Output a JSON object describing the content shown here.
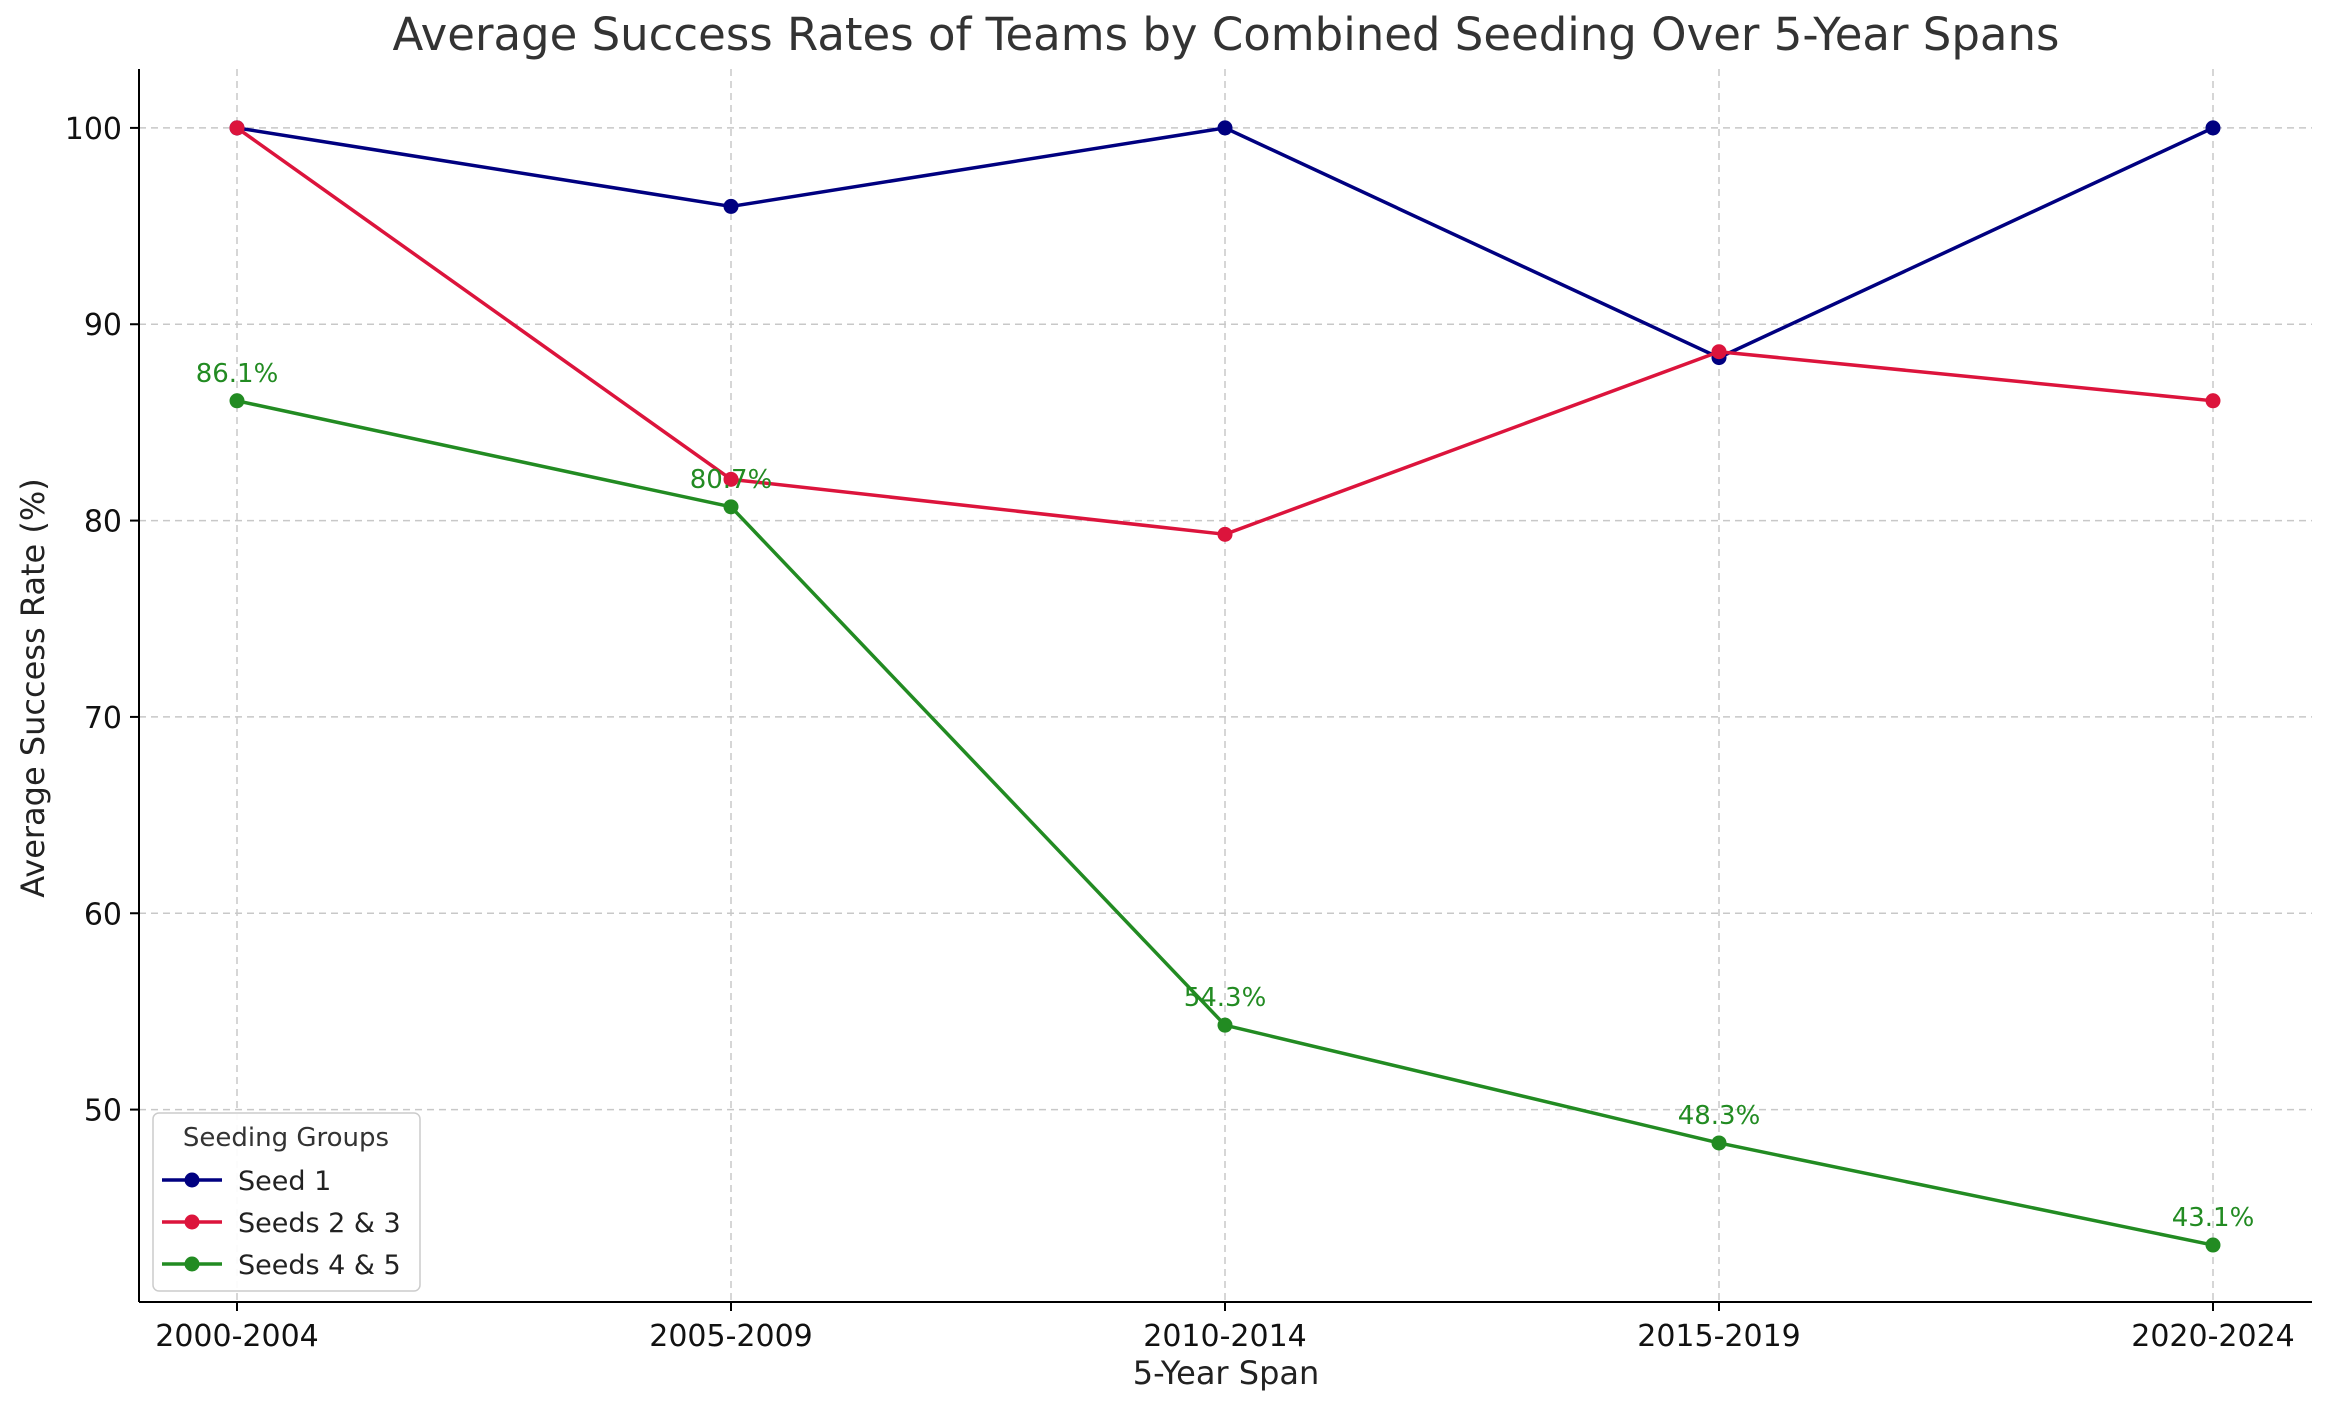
{
  "colors": {
    "seed1": "#000080",
    "seeds23": "#DC143C",
    "seeds45": "#228B22",
    "grid": "#c8c8c8"
  },
  "chart_data": {
    "type": "line",
    "title": "Average Success Rates of Teams by Combined Seeding Over 5-Year Spans",
    "xlabel": "5-Year Span",
    "ylabel": "Average Success Rate (%)",
    "categories": [
      "2000-2004",
      "2005-2009",
      "2010-2014",
      "2015-2019",
      "2020-2024"
    ],
    "ylim": [
      40.2,
      103.0
    ],
    "yticks": [
      50,
      60,
      70,
      80,
      90,
      100
    ],
    "grid": true,
    "legend": {
      "title": "Seeding Groups",
      "placement": "lower-left"
    },
    "series": [
      {
        "name": "Seed 1",
        "color": "#000080",
        "values": [
          100.0,
          96.0,
          100.0,
          88.3,
          100.0
        ]
      },
      {
        "name": "Seeds 2 & 3",
        "color": "#DC143C",
        "values": [
          100.0,
          82.1,
          79.3,
          88.6,
          86.1
        ]
      },
      {
        "name": "Seeds 4 & 5",
        "color": "#228B22",
        "values": [
          86.1,
          80.7,
          54.3,
          48.3,
          43.1
        ],
        "data_labels": [
          "86.1%",
          "80.7%",
          "54.3%",
          "48.3%",
          "43.1%"
        ]
      }
    ]
  }
}
